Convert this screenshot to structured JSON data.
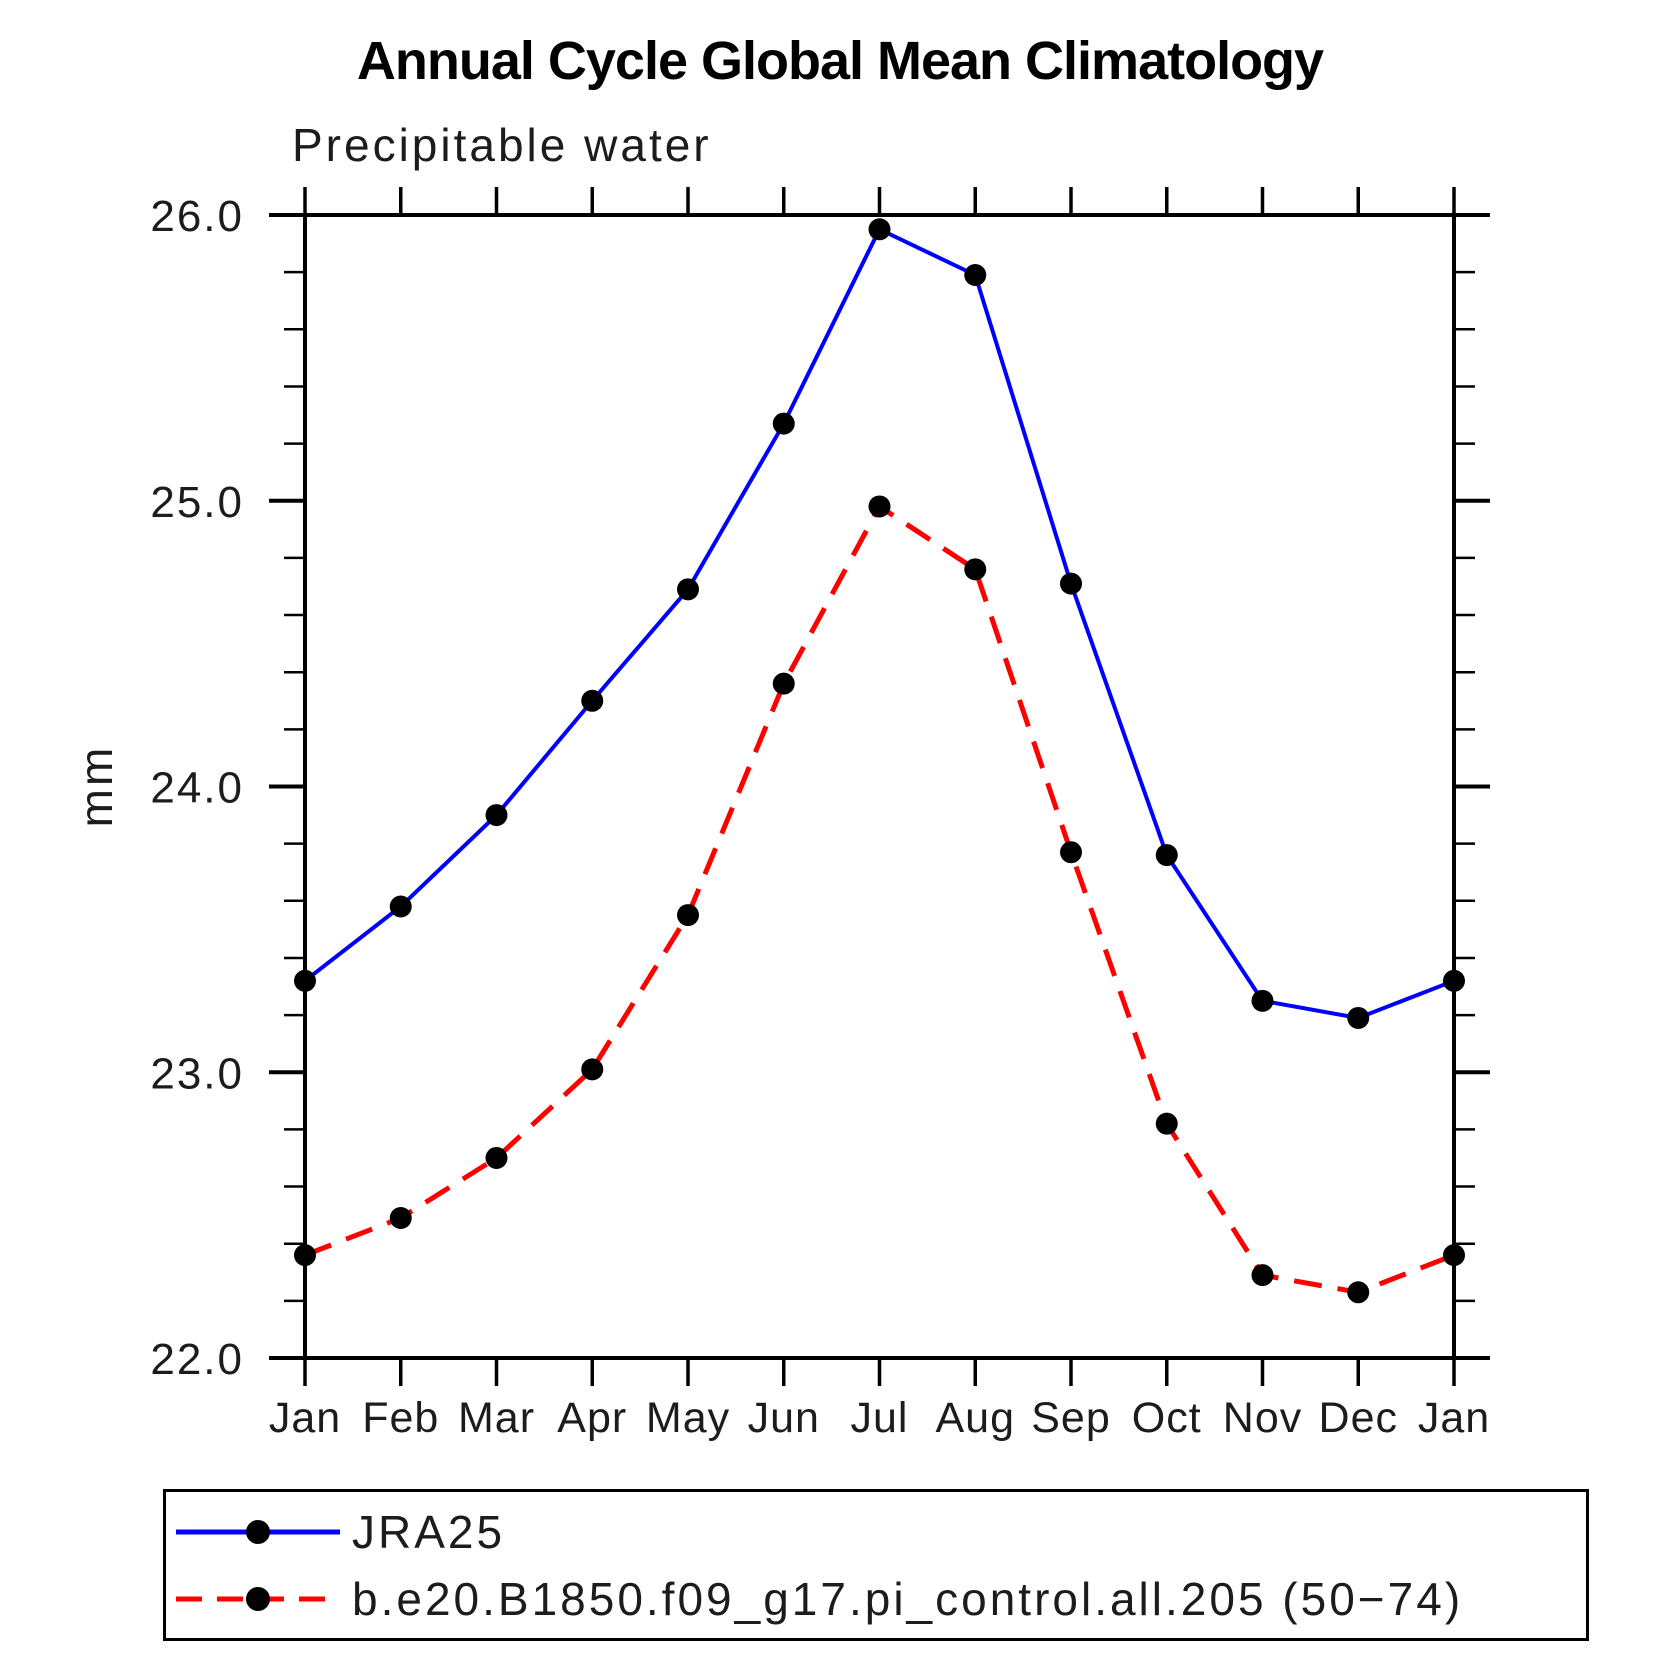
{
  "title": "Annual Cycle Global Mean Climatology",
  "subtitle": "Precipitable water",
  "chart_data": {
    "type": "line",
    "x_categories": [
      "Jan",
      "Feb",
      "Mar",
      "Apr",
      "May",
      "Jun",
      "Jul",
      "Aug",
      "Sep",
      "Oct",
      "Nov",
      "Dec",
      "Jan"
    ],
    "ylabel": "mm",
    "ylim": [
      22.0,
      26.0
    ],
    "ytick_labels": [
      "22.0",
      "23.0",
      "24.0",
      "25.0",
      "26.0"
    ],
    "ytick_values": [
      22.0,
      23.0,
      24.0,
      25.0,
      26.0
    ],
    "minor_tick_step": 0.2,
    "grid": "off",
    "legend_position": "bottom-left-box",
    "frame_color": "#000000",
    "marker": "filled-circle",
    "marker_color": "#000000",
    "series": [
      {
        "name": "JRA25",
        "color": "#0000ff",
        "style": "solid",
        "values": [
          23.32,
          23.58,
          23.9,
          24.3,
          24.69,
          25.27,
          25.95,
          25.79,
          24.71,
          23.76,
          23.25,
          23.19,
          23.32
        ]
      },
      {
        "name": "b.e20.B1850.f09_g17.pi_control.all.205 (50−74)",
        "color": "#ff0000",
        "style": "dashed",
        "values": [
          22.36,
          22.49,
          22.7,
          23.01,
          23.55,
          24.36,
          24.98,
          24.76,
          23.77,
          22.82,
          22.29,
          22.23,
          22.36
        ]
      }
    ]
  }
}
